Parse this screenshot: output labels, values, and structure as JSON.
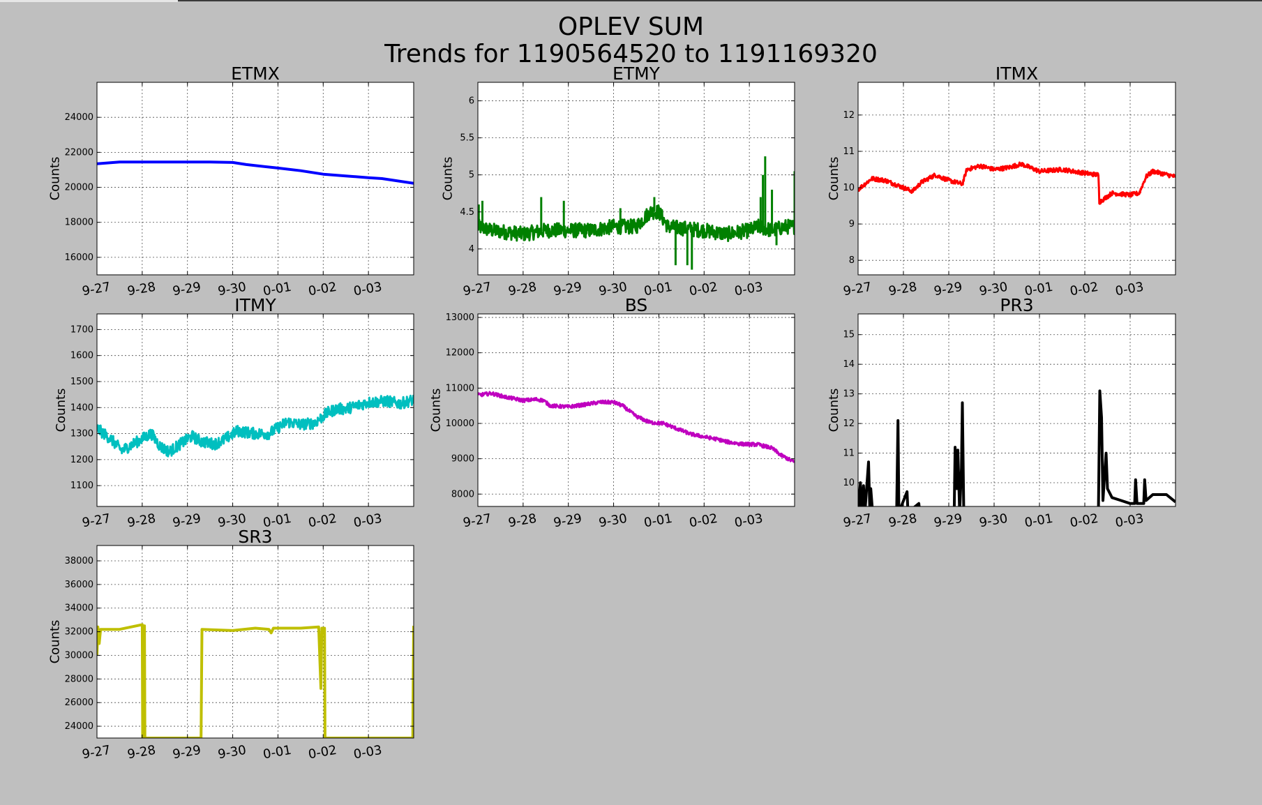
{
  "figure": {
    "title_line1": "OPLEV SUM",
    "title_line2": "Trends for 1190564520 to 1191169320",
    "background": "#bfbfbf"
  },
  "chart_data": [
    {
      "type": "line",
      "title": "ETMX",
      "ylabel": "Counts",
      "color": "#0000ff",
      "xlim": [
        0,
        7
      ],
      "ylim": [
        15000,
        26000
      ],
      "yticks": [
        16000,
        18000,
        20000,
        22000,
        24000
      ],
      "xticks": [
        0,
        1,
        2,
        3,
        4,
        5,
        6
      ],
      "xticklabels": [
        "9-27",
        "9-28",
        "9-29",
        "9-30",
        "0-01",
        "0-02",
        "0-03"
      ],
      "grid": true,
      "noise": 0,
      "points": [
        [
          0,
          21350
        ],
        [
          0.5,
          21450
        ],
        [
          1,
          21450
        ],
        [
          1.5,
          21450
        ],
        [
          2,
          21450
        ],
        [
          2.5,
          21450
        ],
        [
          3,
          21420
        ],
        [
          3.3,
          21300
        ],
        [
          4,
          21100
        ],
        [
          4.5,
          20950
        ],
        [
          5,
          20750
        ],
        [
          5.5,
          20650
        ],
        [
          6,
          20550
        ],
        [
          6.3,
          20500
        ],
        [
          7,
          20230
        ]
      ]
    },
    {
      "type": "line",
      "title": "ETMY",
      "ylabel": "Counts",
      "color": "#008000",
      "xlim": [
        0,
        7
      ],
      "ylim": [
        3.65,
        6.25
      ],
      "yticks": [
        4.0,
        4.5,
        5.0,
        5.5,
        6.0
      ],
      "xticks": [
        0,
        1,
        2,
        3,
        4,
        5,
        6
      ],
      "xticklabels": [
        "9-27",
        "9-28",
        "9-29",
        "9-30",
        "0-01",
        "0-02",
        "0-03"
      ],
      "grid": true,
      "noise": 0.1,
      "points": [
        [
          0,
          4.3
        ],
        [
          0.3,
          4.25
        ],
        [
          1,
          4.2
        ],
        [
          1.5,
          4.25
        ],
        [
          2,
          4.25
        ],
        [
          2.5,
          4.25
        ],
        [
          3,
          4.3
        ],
        [
          3.5,
          4.3
        ],
        [
          3.8,
          4.5
        ],
        [
          4,
          4.5
        ],
        [
          4.2,
          4.3
        ],
        [
          5,
          4.25
        ],
        [
          5.5,
          4.2
        ],
        [
          6,
          4.25
        ],
        [
          6.2,
          4.3
        ],
        [
          6.5,
          4.25
        ],
        [
          6.8,
          4.3
        ],
        [
          7,
          4.3
        ]
      ],
      "spikes": [
        [
          0.02,
          4.6
        ],
        [
          0.1,
          4.65
        ],
        [
          1.4,
          4.7
        ],
        [
          1.9,
          4.65
        ],
        [
          3.15,
          4.55
        ],
        [
          3.9,
          4.7
        ],
        [
          4.37,
          3.78
        ],
        [
          4.63,
          3.78
        ],
        [
          4.73,
          3.72
        ],
        [
          6.25,
          4.7
        ],
        [
          6.3,
          5.0
        ],
        [
          6.35,
          5.25
        ],
        [
          6.5,
          4.8
        ],
        [
          6.6,
          4.05
        ],
        [
          6.9,
          4.3
        ],
        [
          7.0,
          5.05
        ]
      ]
    },
    {
      "type": "line",
      "title": "ITMX",
      "ylabel": "Counts",
      "color": "#ff0000",
      "xlim": [
        0,
        7
      ],
      "ylim": [
        7.6,
        12.9
      ],
      "yticks": [
        8,
        9,
        10,
        11,
        12
      ],
      "xticks": [
        0,
        1,
        2,
        3,
        4,
        5,
        6
      ],
      "xticklabels": [
        "9-27",
        "9-28",
        "9-29",
        "9-30",
        "0-01",
        "0-02",
        "0-03"
      ],
      "grid": true,
      "noise": 0.06,
      "points": [
        [
          0,
          9.95
        ],
        [
          0.3,
          10.25
        ],
        [
          0.6,
          10.2
        ],
        [
          1,
          10.0
        ],
        [
          1.2,
          9.9
        ],
        [
          1.4,
          10.15
        ],
        [
          1.7,
          10.35
        ],
        [
          2,
          10.2
        ],
        [
          2.3,
          10.1
        ],
        [
          2.4,
          10.5
        ],
        [
          2.7,
          10.6
        ],
        [
          3,
          10.5
        ],
        [
          3.3,
          10.55
        ],
        [
          3.6,
          10.65
        ],
        [
          4,
          10.45
        ],
        [
          4.5,
          10.5
        ],
        [
          5,
          10.4
        ],
        [
          5.3,
          10.35
        ],
        [
          5.32,
          9.6
        ],
        [
          5.6,
          9.85
        ],
        [
          6,
          9.8
        ],
        [
          6.2,
          9.85
        ],
        [
          6.35,
          10.3
        ],
        [
          6.5,
          10.45
        ],
        [
          7,
          10.3
        ],
        [
          7,
          10.7
        ]
      ]
    },
    {
      "type": "line",
      "title": "ITMY",
      "ylabel": "Counts",
      "color": "#00bfbf",
      "xlim": [
        0,
        7
      ],
      "ylim": [
        1020,
        1760
      ],
      "yticks": [
        1100,
        1200,
        1300,
        1400,
        1500,
        1600,
        1700
      ],
      "xticks": [
        0,
        1,
        2,
        3,
        4,
        5,
        6
      ],
      "xticklabels": [
        "9-27",
        "9-28",
        "9-29",
        "9-30",
        "0-01",
        "0-02",
        "0-03"
      ],
      "grid": true,
      "noise": 22,
      "points": [
        [
          0,
          1320
        ],
        [
          0.3,
          1280
        ],
        [
          0.55,
          1235
        ],
        [
          1,
          1280
        ],
        [
          1.2,
          1300
        ],
        [
          1.4,
          1250
        ],
        [
          1.6,
          1230
        ],
        [
          1.8,
          1255
        ],
        [
          2.1,
          1290
        ],
        [
          2.3,
          1270
        ],
        [
          2.6,
          1260
        ],
        [
          2.8,
          1275
        ],
        [
          3.1,
          1310
        ],
        [
          3.5,
          1300
        ],
        [
          3.8,
          1300
        ],
        [
          4.2,
          1345
        ],
        [
          4.5,
          1335
        ],
        [
          4.8,
          1340
        ],
        [
          5.1,
          1380
        ],
        [
          5.3,
          1395
        ],
        [
          5.5,
          1395
        ],
        [
          6,
          1420
        ],
        [
          6.4,
          1425
        ],
        [
          6.7,
          1415
        ],
        [
          7,
          1430
        ]
      ]
    },
    {
      "type": "line",
      "title": "BS",
      "ylabel": "Counts",
      "color": "#bf00bf",
      "xlim": [
        0,
        7
      ],
      "ylim": [
        7650,
        13100
      ],
      "yticks": [
        8000,
        9000,
        10000,
        11000,
        12000,
        13000
      ],
      "xticks": [
        0,
        1,
        2,
        3,
        4,
        5,
        6
      ],
      "xticklabels": [
        "9-27",
        "9-28",
        "9-29",
        "9-30",
        "0-01",
        "0-02",
        "0-03"
      ],
      "grid": true,
      "noise": 50,
      "points": [
        [
          0,
          10800
        ],
        [
          0.3,
          10850
        ],
        [
          0.6,
          10750
        ],
        [
          1,
          10650
        ],
        [
          1.3,
          10680
        ],
        [
          1.45,
          10650
        ],
        [
          1.6,
          10500
        ],
        [
          2,
          10470
        ],
        [
          2.3,
          10520
        ],
        [
          2.7,
          10600
        ],
        [
          3,
          10600
        ],
        [
          3.2,
          10500
        ],
        [
          3.5,
          10200
        ],
        [
          3.8,
          10030
        ],
        [
          4.1,
          10000
        ],
        [
          4.4,
          9850
        ],
        [
          4.7,
          9700
        ],
        [
          5,
          9620
        ],
        [
          5.3,
          9550
        ],
        [
          5.5,
          9480
        ],
        [
          5.8,
          9420
        ],
        [
          6.2,
          9400
        ],
        [
          6.5,
          9300
        ],
        [
          6.7,
          9100
        ],
        [
          7,
          8900
        ]
      ]
    },
    {
      "type": "line",
      "title": "PR3",
      "ylabel": "Counts",
      "color": "#000000",
      "xlim": [
        0,
        7
      ],
      "ylim": [
        9.2,
        15.7
      ],
      "yticks": [
        10,
        11,
        12,
        13,
        14,
        15
      ],
      "xticks": [
        0,
        1,
        2,
        3,
        4,
        5,
        6
      ],
      "xticklabels": [
        "9-27",
        "9-28",
        "9-29",
        "9-30",
        "0-01",
        "0-02",
        "0-03"
      ],
      "grid": true,
      "noise": 0,
      "points": [
        [
          0.0,
          9.0
        ],
        [
          0.05,
          10.0
        ],
        [
          0.08,
          9.0
        ],
        [
          0.12,
          9.9
        ],
        [
          0.15,
          9.0
        ],
        [
          0.23,
          10.7
        ],
        [
          0.26,
          9.0
        ],
        [
          0.28,
          9.8
        ],
        [
          0.32,
          9.0
        ],
        [
          0.85,
          9.0
        ],
        [
          0.88,
          12.1
        ],
        [
          0.9,
          9.0
        ],
        [
          1.08,
          9.7
        ],
        [
          1.1,
          9.0
        ],
        [
          1.34,
          9.3
        ],
        [
          1.36,
          9.0
        ],
        [
          2.12,
          9.0
        ],
        [
          2.14,
          11.2
        ],
        [
          2.18,
          9.8
        ],
        [
          2.2,
          11.1
        ],
        [
          2.24,
          9.0
        ],
        [
          2.28,
          10.5
        ],
        [
          2.3,
          12.7
        ],
        [
          2.33,
          9.0
        ],
        [
          5.3,
          9.0
        ],
        [
          5.33,
          13.1
        ],
        [
          5.37,
          12.2
        ],
        [
          5.4,
          9.4
        ],
        [
          5.47,
          11.0
        ],
        [
          5.5,
          9.8
        ],
        [
          5.6,
          9.5
        ],
        [
          5.8,
          9.4
        ],
        [
          6.0,
          9.3
        ],
        [
          6.1,
          9.3
        ],
        [
          6.12,
          10.1
        ],
        [
          6.15,
          9.3
        ],
        [
          6.3,
          9.3
        ],
        [
          6.32,
          10.1
        ],
        [
          6.35,
          9.4
        ],
        [
          6.5,
          9.6
        ],
        [
          6.8,
          9.6
        ],
        [
          7.0,
          9.35
        ]
      ]
    },
    {
      "type": "line",
      "title": "SR3",
      "ylabel": "Counts",
      "color": "#bfbf00",
      "xlim": [
        0,
        7
      ],
      "ylim": [
        23000,
        39300
      ],
      "yticks": [
        24000,
        26000,
        28000,
        30000,
        32000,
        34000,
        36000,
        38000
      ],
      "xticks": [
        0,
        1,
        2,
        3,
        4,
        5,
        6
      ],
      "xticklabels": [
        "9-27",
        "9-28",
        "9-29",
        "9-30",
        "0-01",
        "0-02",
        "0-03"
      ],
      "grid": true,
      "noise": 0,
      "points": [
        [
          0,
          30000
        ],
        [
          0.02,
          32400
        ],
        [
          0.05,
          31000
        ],
        [
          0.08,
          32200
        ],
        [
          0.5,
          32200
        ],
        [
          1,
          32600
        ],
        [
          1.01,
          23000
        ],
        [
          1.05,
          32500
        ],
        [
          1.06,
          23000
        ],
        [
          2.3,
          23000
        ],
        [
          2.32,
          32200
        ],
        [
          3,
          32100
        ],
        [
          3.5,
          32300
        ],
        [
          3.8,
          32200
        ],
        [
          3.85,
          31900
        ],
        [
          3.9,
          32300
        ],
        [
          4.5,
          32300
        ],
        [
          4.9,
          32400
        ],
        [
          4.95,
          27200
        ],
        [
          4.97,
          32300
        ],
        [
          5.03,
          32300
        ],
        [
          5.04,
          23000
        ],
        [
          6.98,
          23000
        ],
        [
          7.0,
          32500
        ]
      ]
    }
  ]
}
